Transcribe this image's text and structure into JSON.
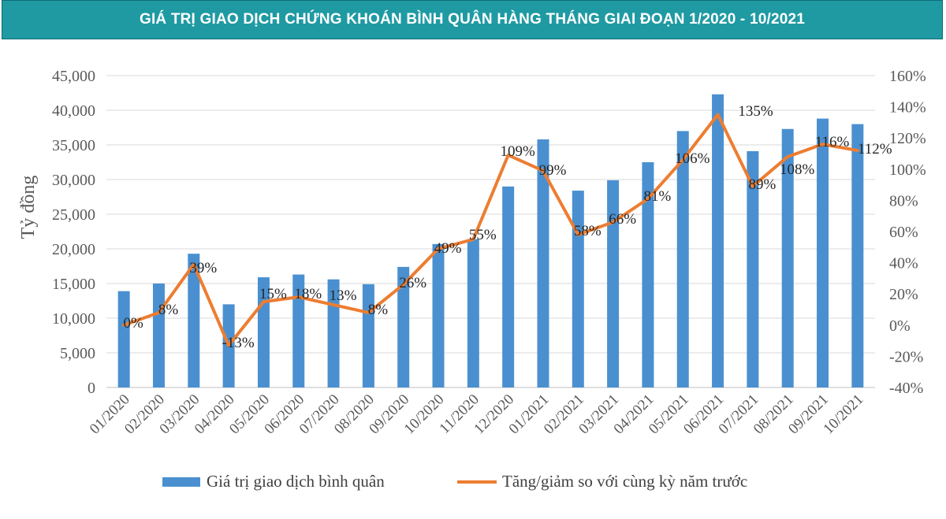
{
  "header": {
    "title": "GIÁ TRỊ GIAO DỊCH CHỨNG KHOÁN BÌNH QUÂN HÀNG THÁNG GIAI ĐOẠN 1/2020 - 10/2021"
  },
  "chart_data": {
    "type": "bar+line",
    "title": "GIÁ TRỊ GIAO DỊCH CHỨNG KHOÁN BÌNH QUÂN HÀNG THÁNG GIAI ĐOẠN 1/2020 - 10/2021",
    "ylabel": "Tỷ đồng",
    "categories": [
      "01/2020",
      "02/2020",
      "03/2020",
      "04/2020",
      "05/2020",
      "06/2020",
      "07/2020",
      "08/2020",
      "09/2020",
      "10/2020",
      "11/2020",
      "12/2020",
      "01/2021",
      "02/2021",
      "03/2021",
      "04/2021",
      "05/2021",
      "06/2021",
      "07/2021",
      "08/2021",
      "09/2021",
      "10/2021"
    ],
    "left_axis": {
      "ylim": [
        0,
        45000
      ],
      "ticks": [
        0,
        5000,
        10000,
        15000,
        20000,
        25000,
        30000,
        35000,
        40000,
        45000
      ],
      "tick_labels": [
        "0",
        "5,000",
        "10,000",
        "15,000",
        "20,000",
        "25,000",
        "30,000",
        "35,000",
        "40,000",
        "45,000"
      ]
    },
    "right_axis": {
      "ylim": [
        -40,
        160
      ],
      "ticks": [
        -40,
        -20,
        0,
        20,
        40,
        60,
        80,
        100,
        120,
        140,
        160
      ],
      "tick_labels": [
        "-40%",
        "-20%",
        "0%",
        "20%",
        "40%",
        "60%",
        "80%",
        "100%",
        "120%",
        "140%",
        "160%"
      ]
    },
    "series": [
      {
        "name": "Giá trị giao dịch bình quân",
        "type": "bar",
        "axis": "left",
        "color": "#4a90d0",
        "values": [
          13900,
          15000,
          19300,
          12000,
          15900,
          16300,
          15600,
          14900,
          17400,
          20700,
          21400,
          29000,
          35800,
          28400,
          29900,
          32500,
          37000,
          42300,
          34100,
          37300,
          38800,
          38000
        ]
      },
      {
        "name": "Tăng/giảm so với cùng kỳ năm trước",
        "type": "line",
        "axis": "right",
        "color": "#ed7d31",
        "values": [
          0,
          8,
          39,
          -13,
          15,
          18,
          13,
          8,
          26,
          49,
          55,
          109,
          99,
          58,
          66,
          81,
          106,
          135,
          89,
          108,
          116,
          112
        ],
        "labels": [
          "0%",
          "8%",
          "39%",
          "-13%",
          "15%",
          "18%",
          "13%",
          "8%",
          "26%",
          "49%",
          "55%",
          "109%",
          "99%",
          "58%",
          "66%",
          "81%",
          "106%",
          "135%",
          "89%",
          "108%",
          "116%",
          "112%"
        ]
      }
    ],
    "legend": [
      "Giá trị giao dịch bình quân",
      "Tăng/giảm so với cùng kỳ năm trước"
    ],
    "legend_position": "bottom",
    "grid": true
  }
}
